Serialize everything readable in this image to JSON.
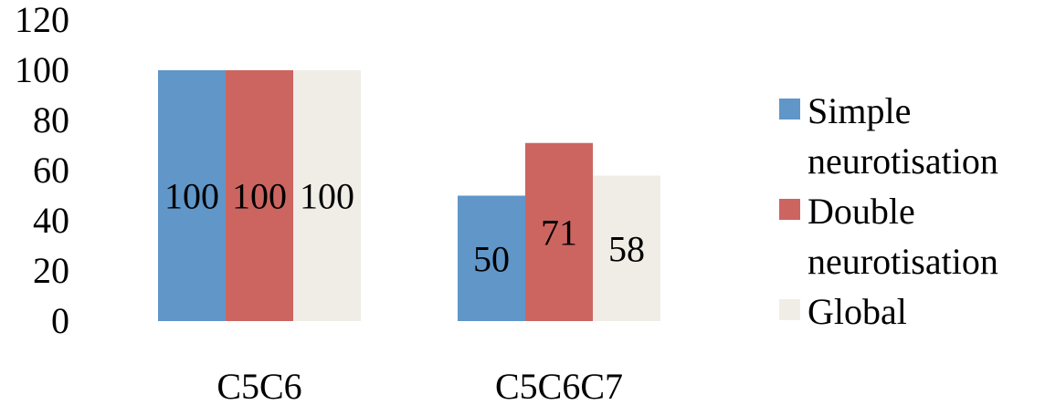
{
  "chart_data": {
    "type": "bar",
    "categories": [
      "C5C6",
      "C5C6C7"
    ],
    "series": [
      {
        "name": "Simple neurotisation",
        "values": [
          100,
          50
        ],
        "color": "#6096c8"
      },
      {
        "name": "Double neurotisation",
        "values": [
          100,
          71
        ],
        "color": "#cc6560"
      },
      {
        "name": "Global",
        "values": [
          100,
          58
        ],
        "color": "#f0ede6"
      }
    ],
    "ylim": [
      0,
      120
    ],
    "yticks": [
      "0",
      "20",
      "40",
      "60",
      "80",
      "100",
      "120"
    ],
    "data_labels": [
      [
        "100",
        "50"
      ],
      [
        "100",
        "71"
      ],
      [
        "100",
        "58"
      ]
    ],
    "legend_position": "right",
    "legend_lines": [
      [
        "Simple",
        "neurotisation"
      ],
      [
        "Double",
        "neurotisation"
      ],
      [
        "Global"
      ]
    ],
    "grid": false
  }
}
